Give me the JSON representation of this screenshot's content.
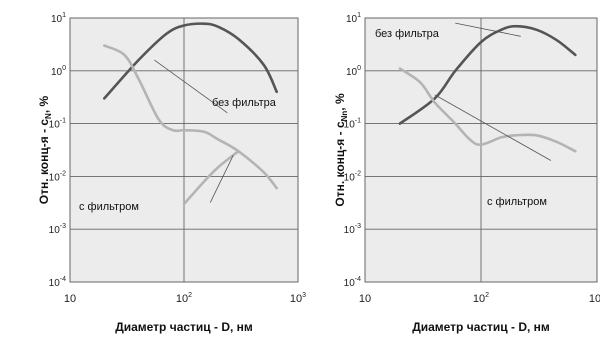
{
  "chart_data": [
    {
      "type": "line",
      "xlabel": "Диаметр частиц - D, нм",
      "ylabel": "Отн. конц-я - c",
      "ylabel_sub": "N",
      "ylabel_unit": ", %",
      "xscale": "log",
      "yscale": "log",
      "xlim": [
        10,
        1000
      ],
      "ylim": [
        0.0001,
        10
      ],
      "x_ticks": [
        {
          "base": "10",
          "exp": ""
        },
        {
          "base": "10",
          "exp": "2"
        },
        {
          "base": "10",
          "exp": "3"
        }
      ],
      "y_ticks": [
        {
          "base": "10",
          "exp": "1"
        },
        {
          "base": "10",
          "exp": "0"
        },
        {
          "base": "10",
          "exp": "-1"
        },
        {
          "base": "10",
          "exp": "-2"
        },
        {
          "base": "10",
          "exp": "-3"
        },
        {
          "base": "10",
          "exp": "-4"
        }
      ],
      "grid": true,
      "series": [
        {
          "name": "без фильтра",
          "color": "#555555",
          "x": [
            20,
            40,
            70,
            100,
            150,
            200,
            300,
            500,
            650
          ],
          "y": [
            0.3,
            1.6,
            5.0,
            7.2,
            7.8,
            6.8,
            4.0,
            1.3,
            0.4
          ]
        },
        {
          "name": "с фильтром",
          "color": "#b4b4b4",
          "x": [
            20,
            30,
            40,
            60,
            80,
            100,
            150,
            200,
            300,
            500,
            650
          ],
          "y": [
            3.0,
            2.0,
            0.7,
            0.12,
            0.075,
            0.075,
            0.07,
            0.05,
            0.03,
            0.012,
            0.006
          ]
        },
        {
          "name": "",
          "color": "#b4b4b4",
          "x": [
            100,
            150,
            200,
            300
          ],
          "y": [
            0.003,
            0.008,
            0.015,
            0.03
          ]
        }
      ],
      "annotations": [
        {
          "text": "без фильтра",
          "series": 0
        },
        {
          "text": "с фильтром",
          "series": 1
        }
      ]
    },
    {
      "type": "line",
      "xlabel": "Диаметр частиц - D, нм",
      "ylabel": "Отн. конц-я - c",
      "ylabel_sub": "Nn",
      "ylabel_unit": ", %",
      "xscale": "log",
      "yscale": "log",
      "xlim": [
        10,
        1000
      ],
      "ylim": [
        0.0001,
        10
      ],
      "x_ticks": [
        {
          "base": "10",
          "exp": ""
        },
        {
          "base": "10",
          "exp": "2"
        },
        {
          "base": "10",
          "exp": "3"
        }
      ],
      "y_ticks": [
        {
          "base": "10",
          "exp": "1"
        },
        {
          "base": "10",
          "exp": "0"
        },
        {
          "base": "10",
          "exp": "-1"
        },
        {
          "base": "10",
          "exp": "-2"
        },
        {
          "base": "10",
          "exp": "-3"
        },
        {
          "base": "10",
          "exp": "-4"
        }
      ],
      "grid": true,
      "series": [
        {
          "name": "без фильтра",
          "color": "#555555",
          "x": [
            20,
            40,
            60,
            100,
            150,
            200,
            300,
            450,
            650
          ],
          "y": [
            0.1,
            0.3,
            1.0,
            3.5,
            6.0,
            7.0,
            6.0,
            3.8,
            2.0
          ]
        },
        {
          "name": "с фильтром",
          "color": "#b4b4b4",
          "x": [
            20,
            30,
            40,
            60,
            80,
            100,
            150,
            200,
            300,
            450,
            650
          ],
          "y": [
            1.1,
            0.6,
            0.25,
            0.1,
            0.05,
            0.04,
            0.055,
            0.06,
            0.06,
            0.045,
            0.03
          ]
        }
      ],
      "annotations": [
        {
          "text": "без фильтра",
          "series": 0
        },
        {
          "text": "с фильтром",
          "series": 1
        }
      ]
    }
  ]
}
